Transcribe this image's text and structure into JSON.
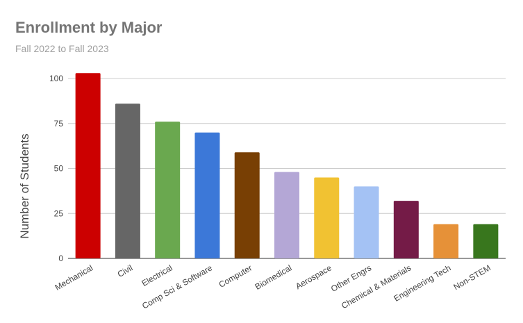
{
  "chart_data": {
    "type": "bar",
    "title": "Enrollment by Major",
    "subtitle": "Fall 2022 to Fall 2023",
    "xlabel": "",
    "ylabel": "Number of Students",
    "ylim": [
      0,
      100
    ],
    "yticks": [
      0,
      25,
      50,
      75,
      100
    ],
    "grid": true,
    "categories": [
      "Mechanical",
      "Civil",
      "Electrical",
      "Comp Sci & Software",
      "Computer",
      "Biomedical",
      "Aerospace",
      "Other Engrs",
      "Chemical & Materials",
      "Engineering Tech",
      "Non-STEM"
    ],
    "values": [
      103,
      86,
      76,
      70,
      59,
      48,
      45,
      40,
      32,
      19,
      19
    ],
    "colors": [
      "#cc0000",
      "#666666",
      "#6aa84f",
      "#3c78d8",
      "#783f04",
      "#b4a7d6",
      "#f1c232",
      "#a4c2f4",
      "#741b47",
      "#e69138",
      "#38761d"
    ]
  }
}
